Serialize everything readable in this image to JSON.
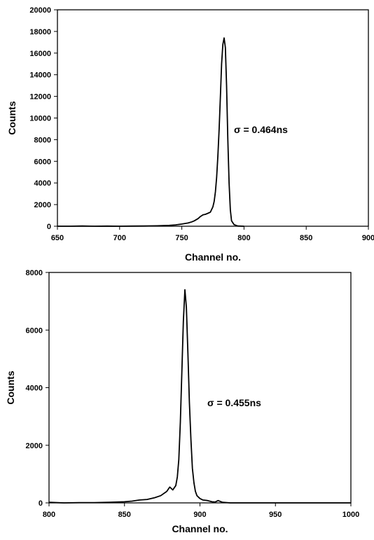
{
  "chart_data": [
    {
      "type": "line",
      "xlabel": "Channel no.",
      "ylabel": "Counts",
      "xlim": [
        650,
        900
      ],
      "ylim": [
        0,
        20000
      ],
      "xticks": [
        650,
        700,
        750,
        800,
        850,
        900
      ],
      "yticks": [
        0,
        2000,
        4000,
        6000,
        8000,
        10000,
        12000,
        14000,
        16000,
        18000,
        20000
      ],
      "annotation": "σ = 0.464ns",
      "grid": false,
      "legend": "none",
      "series": [
        {
          "x": [
            650,
            660,
            670,
            680,
            690,
            700,
            710,
            720,
            730,
            740,
            745,
            750,
            755,
            758,
            760,
            763,
            765,
            767,
            769,
            771,
            773,
            775,
            776,
            777,
            778,
            779,
            780,
            781,
            782,
            783,
            784,
            785,
            786,
            787,
            788,
            789,
            790,
            792,
            795,
            800
          ],
          "y": [
            0,
            0,
            20,
            0,
            10,
            0,
            10,
            20,
            40,
            80,
            120,
            200,
            300,
            400,
            500,
            700,
            900,
            1050,
            1100,
            1200,
            1300,
            1800,
            2300,
            3200,
            4500,
            6500,
            9000,
            12000,
            15000,
            16800,
            17400,
            16500,
            13000,
            8000,
            4000,
            1500,
            500,
            150,
            20,
            0
          ]
        }
      ]
    },
    {
      "type": "line",
      "xlabel": "Channel no.",
      "ylabel": "Counts",
      "xlim": [
        800,
        1000
      ],
      "ylim": [
        0,
        8000
      ],
      "xticks": [
        800,
        850,
        900,
        950,
        1000
      ],
      "yticks": [
        0,
        2000,
        4000,
        6000,
        8000
      ],
      "annotation": "σ = 0.455ns",
      "grid": false,
      "legend": "none",
      "series": [
        {
          "x": [
            800,
            810,
            820,
            830,
            840,
            845,
            850,
            855,
            860,
            865,
            870,
            874,
            878,
            880,
            882,
            884,
            885,
            886,
            887,
            888,
            889,
            890,
            891,
            892,
            893,
            894,
            895,
            896,
            897,
            898,
            900,
            902,
            905,
            908,
            910,
            912,
            915,
            918,
            920,
            930,
            940,
            950,
            1000
          ],
          "y": [
            20,
            0,
            10,
            10,
            20,
            30,
            40,
            60,
            100,
            120,
            180,
            250,
            400,
            550,
            450,
            600,
            900,
            1500,
            2800,
            4500,
            6300,
            7400,
            6800,
            5200,
            3500,
            2200,
            1200,
            700,
            400,
            250,
            150,
            100,
            80,
            40,
            30,
            80,
            20,
            10,
            0,
            0,
            0,
            0,
            0
          ]
        }
      ]
    }
  ]
}
